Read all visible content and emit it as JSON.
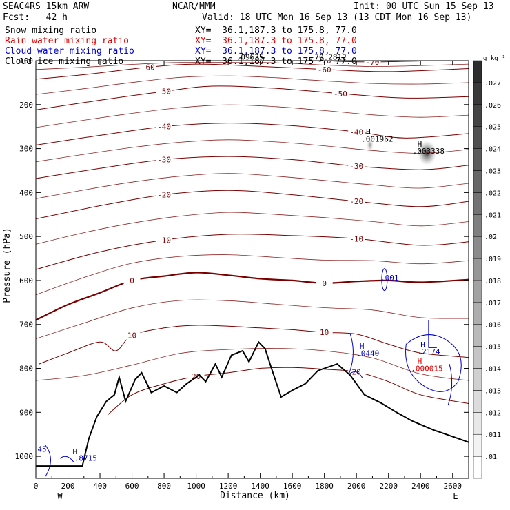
{
  "header": {
    "model": "SEAC4RS 15km ARW",
    "org": "NCAR/MMM",
    "init": "Init: 00 UTC Sun 15 Sep 13",
    "fcst": "Fcst:   42 h",
    "valid": "Valid: 18 UTC Mon 16 Sep 13 (13 CDT Mon 16 Sep 13)",
    "fields": [
      {
        "name": "Snow mixing ratio",
        "xy": "XY=  36.1,187.3 to 175.8, 77.0",
        "color": "#000000"
      },
      {
        "name": "Rain water mixing ratio",
        "xy": "XY=  36.1,187.3 to 175.8, 77.0",
        "color": "#e00000"
      },
      {
        "name": "Cloud water mixing ratio",
        "xy": "XY=  36.1,187.3 to 175.8, 77.0",
        "color": "#0000cc"
      },
      {
        "name": "Cloud ice mixing ratio",
        "xy": "XY=  36.1,187.3 to 175.8, 77.0",
        "color": "#000000"
      }
    ]
  },
  "colors": {
    "temperature": "#7a0000",
    "terrain": "#000000",
    "cloud_water": "#0000cc",
    "rain": "#e00000",
    "snow_shade": "#555555"
  },
  "chart_data": {
    "type": "contour",
    "xlabel": "Distance (km)",
    "ylabel": "Pressure (hPa)",
    "xlim": [
      0,
      2700
    ],
    "ylim": [
      1050,
      100
    ],
    "x_ticks": [
      0,
      200,
      400,
      600,
      800,
      1000,
      1200,
      1400,
      1600,
      1800,
      2000,
      2200,
      2400,
      2600
    ],
    "y_ticks": [
      100,
      200,
      300,
      400,
      500,
      600,
      700,
      800,
      900,
      1000
    ],
    "direction_labels": [
      "W",
      "E"
    ],
    "colorbar": {
      "unit": "g kg⁻¹",
      "levels": [
        ".01",
        ".011",
        ".012",
        ".013",
        ".014",
        ".015",
        ".016",
        ".017",
        ".018",
        ".019",
        ".02",
        ".021",
        ".022",
        ".023",
        ".024",
        ".025",
        ".026",
        ".027"
      ]
    },
    "temperature_contours": [
      {
        "label": "-70",
        "points": [
          [
            1500,
            95
          ],
          [
            1800,
            100
          ],
          [
            2100,
            103
          ],
          [
            2700,
            98
          ]
        ]
      },
      {
        "label": "-60",
        "points": [
          [
            0,
            142
          ],
          [
            300,
            132
          ],
          [
            700,
            115
          ],
          [
            1000,
            108
          ],
          [
            1400,
            113
          ],
          [
            1800,
            120
          ],
          [
            2200,
            125
          ],
          [
            2700,
            118
          ]
        ]
      },
      {
        "label": "-50",
        "points": [
          [
            0,
            212
          ],
          [
            400,
            190
          ],
          [
            800,
            170
          ],
          [
            1100,
            158
          ],
          [
            1500,
            163
          ],
          [
            1900,
            175
          ],
          [
            2300,
            185
          ],
          [
            2700,
            182
          ]
        ]
      },
      {
        "label": "-40",
        "points": [
          [
            0,
            292
          ],
          [
            400,
            270
          ],
          [
            800,
            250
          ],
          [
            1200,
            242
          ],
          [
            1600,
            248
          ],
          [
            2000,
            262
          ],
          [
            2300,
            276
          ],
          [
            2700,
            266
          ]
        ]
      },
      {
        "label": "-30",
        "points": [
          [
            0,
            368
          ],
          [
            400,
            345
          ],
          [
            800,
            325
          ],
          [
            1200,
            318
          ],
          [
            1600,
            325
          ],
          [
            2000,
            340
          ],
          [
            2400,
            348
          ],
          [
            2700,
            338
          ]
        ]
      },
      {
        "label": "-20",
        "points": [
          [
            0,
            460
          ],
          [
            400,
            430
          ],
          [
            800,
            405
          ],
          [
            1200,
            395
          ],
          [
            1600,
            405
          ],
          [
            2000,
            420
          ],
          [
            2400,
            432
          ],
          [
            2700,
            420
          ]
        ]
      },
      {
        "label": "-10",
        "points": [
          [
            0,
            575
          ],
          [
            400,
            535
          ],
          [
            800,
            508
          ],
          [
            1200,
            495
          ],
          [
            1600,
            498
          ],
          [
            2000,
            505
          ],
          [
            2400,
            520
          ],
          [
            2700,
            512
          ]
        ]
      },
      {
        "label": "0",
        "bold": true,
        "points": [
          [
            0,
            690
          ],
          [
            200,
            655
          ],
          [
            400,
            628
          ],
          [
            600,
            600
          ],
          [
            800,
            590
          ],
          [
            1000,
            582
          ],
          [
            1200,
            588
          ],
          [
            1400,
            596
          ],
          [
            1600,
            600
          ],
          [
            1800,
            606
          ],
          [
            2000,
            602
          ],
          [
            2200,
            600
          ],
          [
            2400,
            604
          ],
          [
            2700,
            598
          ]
        ]
      },
      {
        "label": "10",
        "points": [
          [
            20,
            790
          ],
          [
            200,
            765
          ],
          [
            400,
            740
          ],
          [
            500,
            760
          ],
          [
            600,
            725
          ],
          [
            800,
            708
          ],
          [
            1000,
            702
          ],
          [
            1200,
            704
          ],
          [
            1400,
            708
          ],
          [
            1600,
            712
          ],
          [
            1800,
            718
          ],
          [
            2000,
            722
          ],
          [
            2200,
            745
          ],
          [
            2400,
            765
          ],
          [
            2700,
            775
          ]
        ]
      },
      {
        "label": "20",
        "points": [
          [
            450,
            905
          ],
          [
            600,
            860
          ],
          [
            800,
            835
          ],
          [
            1000,
            818
          ],
          [
            1200,
            810
          ],
          [
            1400,
            800
          ],
          [
            1600,
            798
          ],
          [
            1800,
            802
          ],
          [
            2000,
            808
          ],
          [
            2200,
            830
          ],
          [
            2400,
            860
          ],
          [
            2700,
            880
          ]
        ]
      }
    ],
    "terrain": [
      [
        0,
        1022
      ],
      [
        290,
        1022
      ],
      [
        330,
        960
      ],
      [
        380,
        910
      ],
      [
        440,
        875
      ],
      [
        490,
        860
      ],
      [
        520,
        820
      ],
      [
        560,
        875
      ],
      [
        620,
        825
      ],
      [
        660,
        810
      ],
      [
        720,
        855
      ],
      [
        800,
        840
      ],
      [
        880,
        855
      ],
      [
        940,
        835
      ],
      [
        1020,
        815
      ],
      [
        1060,
        830
      ],
      [
        1120,
        790
      ],
      [
        1160,
        820
      ],
      [
        1220,
        770
      ],
      [
        1290,
        760
      ],
      [
        1330,
        785
      ],
      [
        1390,
        740
      ],
      [
        1430,
        755
      ],
      [
        1470,
        800
      ],
      [
        1530,
        865
      ],
      [
        1600,
        850
      ],
      [
        1680,
        835
      ],
      [
        1760,
        805
      ],
      [
        1880,
        790
      ],
      [
        1960,
        815
      ],
      [
        2050,
        860
      ],
      [
        2150,
        878
      ],
      [
        2250,
        900
      ],
      [
        2350,
        920
      ],
      [
        2480,
        940
      ],
      [
        2600,
        955
      ],
      [
        2700,
        968
      ]
    ]
  },
  "annotations": [
    {
      "text": "H",
      "x": 2060,
      "y": 268,
      "color": "#000000"
    },
    {
      "text": ".001962",
      "x": 2030,
      "y": 284,
      "color": "#000000"
    },
    {
      "text": "H",
      "x": 2380,
      "y": 296,
      "color": "#000000"
    },
    {
      "text": ".003338",
      "x": 2350,
      "y": 312,
      "color": "#000000"
    },
    {
      "text": ".001",
      "x": 2150,
      "y": 600,
      "color": "#0000cc"
    },
    {
      "text": "H",
      "x": 2020,
      "y": 755,
      "color": "#0000cc"
    },
    {
      "text": ".0440",
      "x": 2000,
      "y": 772,
      "color": "#0000cc"
    },
    {
      "text": "H",
      "x": 2400,
      "y": 752,
      "color": "#0000cc"
    },
    {
      "text": ".2174",
      "x": 2380,
      "y": 768,
      "color": "#0000cc"
    },
    {
      "text": "H",
      "x": 2380,
      "y": 790,
      "color": "#e00000"
    },
    {
      "text": ".000015",
      "x": 2340,
      "y": 806,
      "color": "#e00000"
    },
    {
      "text": ".09635",
      "x": 1250,
      "y": 98,
      "color": "#000000"
    },
    {
      "text": "-70.2812",
      "x": 1710,
      "y": 98,
      "color": "#000000"
    },
    {
      "text": "45",
      "x": 10,
      "y": 990,
      "color": "#0000cc"
    },
    {
      "text": ".8715",
      "x": 240,
      "y": 1010,
      "color": "#0000cc"
    },
    {
      "text": "H",
      "x": 230,
      "y": 995,
      "color": "#000000"
    }
  ]
}
